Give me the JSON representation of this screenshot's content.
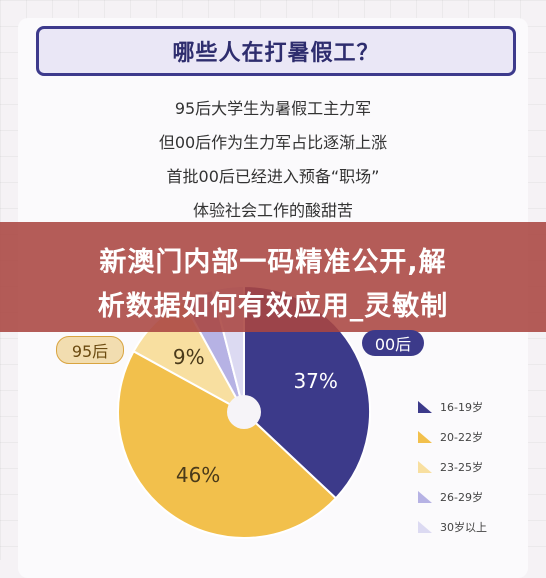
{
  "title": "哪些人在打暑假工？",
  "intro_lines": [
    "95后大学生为暑假工主力军",
    "但00后作为生力军占比逐渐上涨",
    "首批00后已经进入预备“职场”",
    "体验社会工作的酸甜苦"
  ],
  "banner_lines": [
    "新澳门内部一码精准公开,解",
    "析数据如何有效应用_灵敏制"
  ],
  "pill_left": "95后",
  "pill_right": "00后",
  "chart_data": {
    "type": "pie",
    "donut": true,
    "labels": [
      "16-19岁",
      "20-22岁",
      "23-25岁",
      "26-29岁",
      "30岁以上"
    ],
    "values": [
      37,
      46,
      9,
      4,
      4
    ],
    "value_labels": [
      "37%",
      "46%",
      "9%",
      "",
      ""
    ],
    "colors": [
      "#3c3a8a",
      "#f2c04c",
      "#f8dfa0",
      "#b6b2e4",
      "#dcdaf2"
    ],
    "legend_position": "right"
  }
}
